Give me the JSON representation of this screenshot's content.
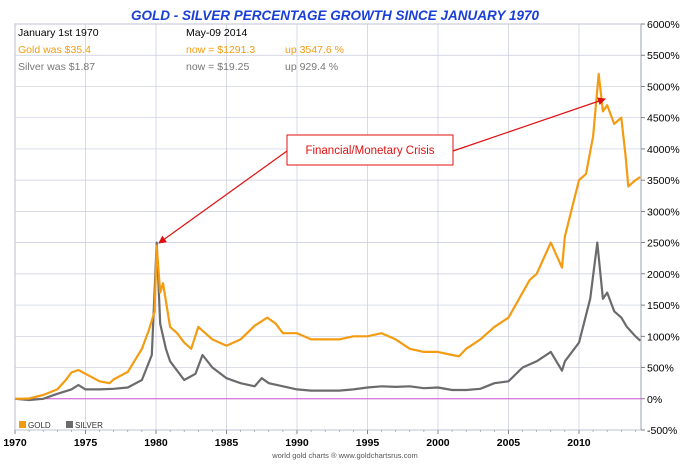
{
  "chart_data": {
    "type": "line",
    "title": "GOLD - SILVER PERCENTAGE GROWTH SINCE JANUARY 1970",
    "xlim": [
      1970,
      2014.4
    ],
    "ylim": [
      -500,
      6000
    ],
    "x_ticks": [
      "1970",
      "1975",
      "1980",
      "1985",
      "1990",
      "1995",
      "2000",
      "2005",
      "2010"
    ],
    "y_ticks": [
      "-500%",
      "0%",
      "500%",
      "1000%",
      "1500%",
      "2000%",
      "2500%",
      "3000%",
      "3500%",
      "4000%",
      "4500%",
      "5000%",
      "5500%",
      "6000%"
    ],
    "y_tick_values": [
      -500,
      0,
      500,
      1000,
      1500,
      2000,
      2500,
      3000,
      3500,
      4000,
      4500,
      5000,
      5500,
      6000
    ],
    "x_tick_values": [
      1970,
      1975,
      1980,
      1985,
      1990,
      1995,
      2000,
      2005,
      2010
    ],
    "grid": true,
    "legend_position": "bottom-left",
    "series": [
      {
        "name": "GOLD",
        "color": "#f39c12",
        "x": [
          1970,
          1971,
          1972,
          1973,
          1973.6,
          1974,
          1974.5,
          1975,
          1976,
          1976.7,
          1977,
          1978,
          1979,
          1979.5,
          1979.9,
          1980.05,
          1980.3,
          1980.5,
          1981,
          1981.5,
          1982,
          1982.5,
          1983,
          1983.5,
          1984,
          1985,
          1986,
          1987,
          1987.9,
          1988.5,
          1989,
          1990,
          1991,
          1992,
          1993,
          1994,
          1995,
          1996,
          1997,
          1998,
          1999,
          2000,
          2001,
          2001.5,
          2002,
          2003,
          2004,
          2005,
          2006,
          2006.5,
          2007,
          2008,
          2008.8,
          2009,
          2010,
          2010.5,
          2011,
          2011.4,
          2011.7,
          2012,
          2012.5,
          2013,
          2013.3,
          2013.5,
          2014,
          2014.35
        ],
        "values": [
          0,
          5,
          60,
          150,
          300,
          420,
          460,
          400,
          280,
          250,
          310,
          430,
          800,
          1100,
          1400,
          2450,
          1700,
          1850,
          1150,
          1050,
          900,
          800,
          1150,
          1050,
          950,
          850,
          950,
          1170,
          1300,
          1200,
          1050,
          1050,
          950,
          950,
          950,
          1000,
          1000,
          1050,
          950,
          800,
          750,
          750,
          700,
          680,
          800,
          950,
          1150,
          1300,
          1700,
          1900,
          2000,
          2500,
          2100,
          2600,
          3500,
          3600,
          4200,
          5200,
          4600,
          4700,
          4400,
          4500,
          3900,
          3400,
          3500,
          3550
        ]
      },
      {
        "name": "SILVER",
        "color": "#6b6b6b",
        "x": [
          1970,
          1971,
          1972,
          1973,
          1974,
          1974.5,
          1975,
          1976,
          1977,
          1978,
          1979,
          1979.7,
          1980.05,
          1980.3,
          1980.7,
          1981,
          1982,
          1982.8,
          1983.3,
          1984,
          1985,
          1986,
          1987,
          1987.5,
          1988,
          1989,
          1990,
          1991,
          1992,
          1993,
          1994,
          1995,
          1996,
          1997,
          1998,
          1999,
          2000,
          2001,
          2002,
          2003,
          2004,
          2005,
          2006,
          2007,
          2008,
          2008.8,
          2009,
          2010,
          2010.8,
          2011.3,
          2011.7,
          2012,
          2012.5,
          2013,
          2013.4,
          2014,
          2014.35
        ],
        "values": [
          0,
          -20,
          0,
          80,
          150,
          220,
          150,
          150,
          160,
          180,
          300,
          700,
          2500,
          1200,
          800,
          600,
          300,
          400,
          700,
          500,
          330,
          250,
          200,
          330,
          250,
          200,
          150,
          130,
          130,
          130,
          150,
          180,
          200,
          190,
          200,
          170,
          180,
          140,
          140,
          160,
          250,
          280,
          500,
          600,
          750,
          450,
          600,
          900,
          1600,
          2500,
          1600,
          1700,
          1400,
          1300,
          1150,
          1000,
          929
        ]
      }
    ],
    "info": {
      "date_start": "January 1st 1970",
      "date_end": "May-09  2014",
      "gold_was": "Gold was $35.4",
      "gold_now": "now = $1291.3",
      "gold_up": "up 3547.6 %",
      "silver_was": "Silver was $1.87",
      "silver_now": "now = $19.25",
      "silver_up": "up 929.4 %"
    },
    "annotation": "Financial/Monetary Crisis",
    "credit": "world gold charts ® www.goldchartsrus.com",
    "legend": [
      {
        "label": "GOLD",
        "color": "#f39c12"
      },
      {
        "label": "SILVER",
        "color": "#6b6b6b"
      }
    ]
  }
}
